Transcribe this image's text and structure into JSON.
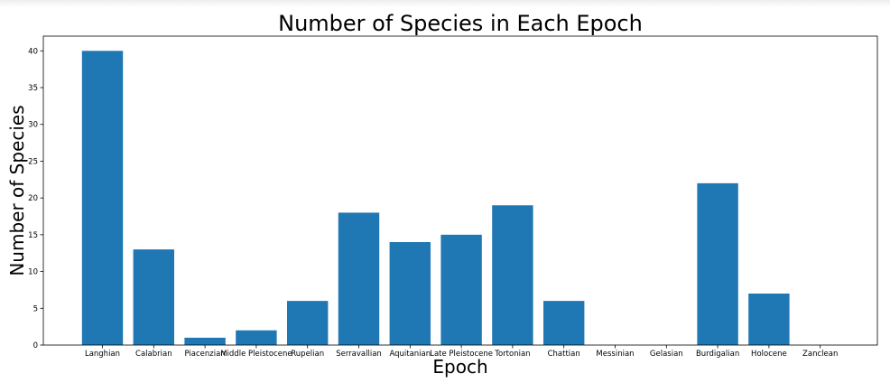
{
  "chart_data": {
    "type": "bar",
    "title": "Number of Species in Each Epoch",
    "xlabel": "Epoch",
    "ylabel": "Number of Species",
    "categories": [
      "Langhian",
      "Calabrian",
      "Piacenzian",
      "Middle Pleistocene",
      "Rupelian",
      "Serravallian",
      "Aquitanian",
      "Late Pleistocene",
      "Tortonian",
      "Chattian",
      "Messinian",
      "Gelasian",
      "Burdigalian",
      "Holocene",
      "Zanclean"
    ],
    "values": [
      40,
      13,
      1,
      2,
      6,
      18,
      14,
      15,
      19,
      6,
      0,
      0,
      22,
      7,
      0
    ],
    "ylim": [
      0,
      42
    ],
    "yticks": [
      0,
      5,
      10,
      15,
      20,
      25,
      30,
      35,
      40
    ],
    "grid": false,
    "colors": {
      "bar": "#1f77b4"
    }
  }
}
